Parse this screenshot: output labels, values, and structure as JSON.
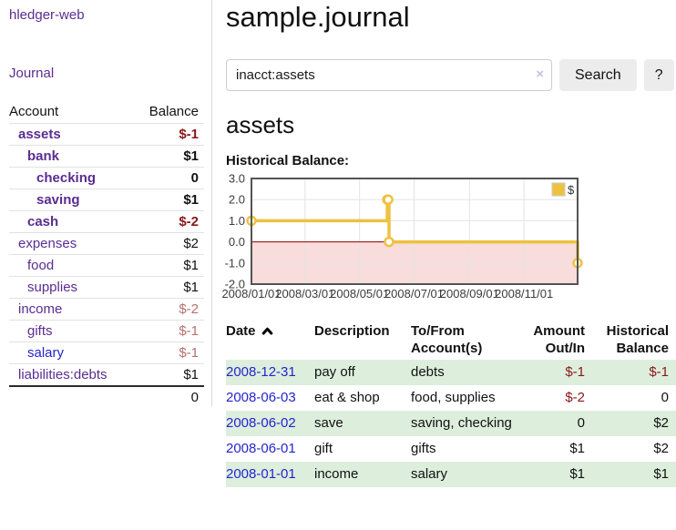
{
  "colors": {
    "accent_purple": "#5b2d90",
    "link_blue": "#2525cd",
    "negative_dark_red": "#8b1717",
    "negative_faded_rose": "#b86f6f",
    "row_stripe_green": "#ddeedd",
    "chart_series_yellow": "#edc240",
    "chart_negative_fill": "#f9dcdc",
    "chart_zero_line": "#8b0000",
    "button_gray": "#ececec"
  },
  "sidebar": {
    "brand": "hledger-web",
    "journal_link": "Journal",
    "accounts_table": {
      "account_header": "Account",
      "balance_header": "Balance",
      "rows": [
        {
          "name": "assets",
          "depth": 1,
          "balance": "$-1",
          "bold": true,
          "neg": true,
          "blue": false
        },
        {
          "name": "bank",
          "depth": 2,
          "balance": "$1",
          "bold": true,
          "neg": false,
          "blue": false
        },
        {
          "name": "checking",
          "depth": 3,
          "balance": "0",
          "bold": true,
          "neg": false,
          "blue": false
        },
        {
          "name": "saving",
          "depth": 3,
          "balance": "$1",
          "bold": true,
          "neg": false,
          "blue": false
        },
        {
          "name": "cash",
          "depth": 2,
          "balance": "$-2",
          "bold": true,
          "neg": true,
          "blue": false
        },
        {
          "name": "expenses",
          "depth": 1,
          "balance": "$2",
          "bold": false,
          "neg": false,
          "blue": false
        },
        {
          "name": "food",
          "depth": 2,
          "balance": "$1",
          "bold": false,
          "neg": false,
          "blue": false
        },
        {
          "name": "supplies",
          "depth": 2,
          "balance": "$1",
          "bold": false,
          "neg": false,
          "blue": false
        },
        {
          "name": "income",
          "depth": 1,
          "balance": "$-2",
          "bold": false,
          "neg": true,
          "blue": false
        },
        {
          "name": "gifts",
          "depth": 2,
          "balance": "$-1",
          "bold": false,
          "neg": true,
          "blue": false
        },
        {
          "name": "salary",
          "depth": 2,
          "balance": "$-1",
          "bold": false,
          "neg": true,
          "blue": true
        },
        {
          "name": "liabilities:debts",
          "depth": 1,
          "balance": "$1",
          "bold": false,
          "neg": false,
          "blue": false
        }
      ],
      "total": "0"
    }
  },
  "main": {
    "title": "sample.journal",
    "search": {
      "value": "inacct:assets",
      "clear_icon": "×",
      "button_label": "Search",
      "help_label": "?"
    },
    "account_heading": "assets",
    "chart_label": "Historical Balance:"
  },
  "chart_data": {
    "type": "line",
    "step": true,
    "series": [
      {
        "name": "$",
        "color": "#edc240",
        "points": [
          [
            "2008-01-01",
            1
          ],
          [
            "2008-06-01",
            2
          ],
          [
            "2008-06-02",
            2
          ],
          [
            "2008-06-03",
            0
          ],
          [
            "2008-12-31",
            -1
          ]
        ]
      }
    ],
    "x_range": [
      "2008-01-01",
      "2008-12-31"
    ],
    "ylim": [
      -2,
      3
    ],
    "yticks": [
      "3.0",
      "2.0",
      "1.0",
      "0.0",
      "-1.0",
      "-2.0"
    ],
    "xticks": [
      "2008/01/01",
      "2008/03/01",
      "2008/05/01",
      "2008/07/01",
      "2008/09/01",
      "2008/11/01"
    ],
    "legend": "$",
    "legend_position": "top-right",
    "grid": true,
    "negative_region_fill": "#f9dcdc",
    "zero_line_color": "#8b0000"
  },
  "register": {
    "headers": {
      "date": "Date",
      "description": "Description",
      "accounts": "To/From Account(s)",
      "amount": "Amount Out/In",
      "balance": "Historical Balance"
    },
    "rows": [
      {
        "date": "2008-12-31",
        "description": "pay off",
        "accounts": "debts",
        "amount": "$-1",
        "amount_neg": true,
        "balance": "$-1",
        "balance_neg": true
      },
      {
        "date": "2008-06-03",
        "description": "eat & shop",
        "accounts": "food, supplies",
        "amount": "$-2",
        "amount_neg": true,
        "balance": "0",
        "balance_neg": false
      },
      {
        "date": "2008-06-02",
        "description": "save",
        "accounts": "saving, checking",
        "amount": "0",
        "amount_neg": false,
        "balance": "$2",
        "balance_neg": false
      },
      {
        "date": "2008-06-01",
        "description": "gift",
        "accounts": "gifts",
        "amount": "$1",
        "amount_neg": false,
        "balance": "$2",
        "balance_neg": false
      },
      {
        "date": "2008-01-01",
        "description": "income",
        "accounts": "salary",
        "amount": "$1",
        "amount_neg": false,
        "balance": "$1",
        "balance_neg": false
      }
    ]
  }
}
